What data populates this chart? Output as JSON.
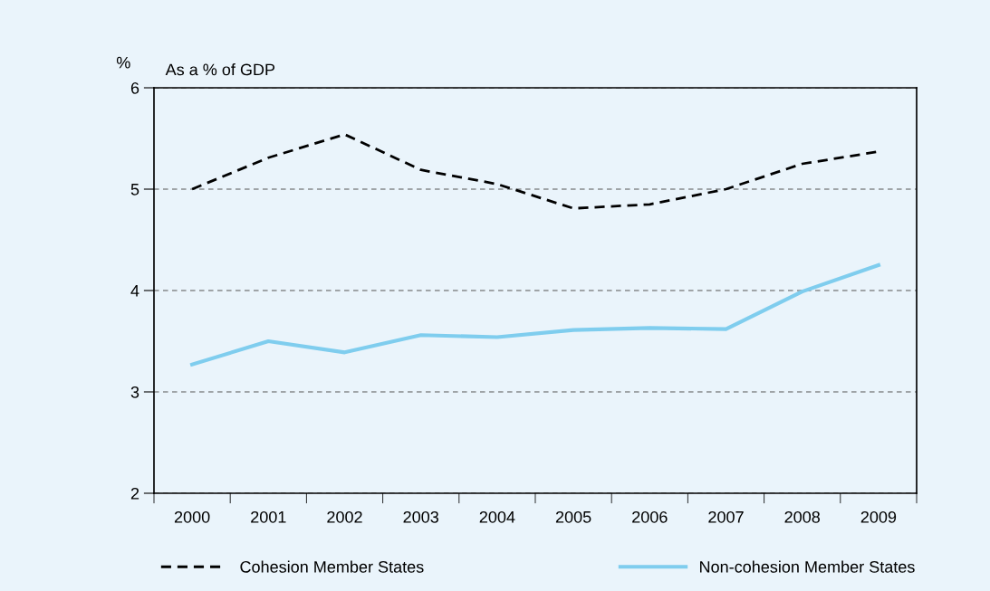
{
  "chart_data": {
    "type": "line",
    "title": "As a % of GDP",
    "ylabel": "%",
    "categories": [
      "2000",
      "2001",
      "2002",
      "2003",
      "2004",
      "2005",
      "2006",
      "2007",
      "2008",
      "2009"
    ],
    "series": [
      {
        "name": "Cohesion Member States",
        "color": "#000000",
        "line_style": "dashed",
        "values": [
          5.0,
          5.31,
          5.54,
          5.19,
          5.05,
          4.81,
          4.85,
          5.0,
          5.25,
          5.37
        ]
      },
      {
        "name": "Non-cohesion Member States",
        "color": "#7fcdee",
        "line_style": "solid",
        "values": [
          3.27,
          3.5,
          3.39,
          3.56,
          3.54,
          3.61,
          3.63,
          3.62,
          3.99,
          4.25
        ]
      }
    ],
    "ylim": [
      2,
      6
    ],
    "yticks": [
      2,
      3,
      4,
      5,
      6
    ],
    "grid": "y",
    "legend": "bottom",
    "marker": "none"
  }
}
